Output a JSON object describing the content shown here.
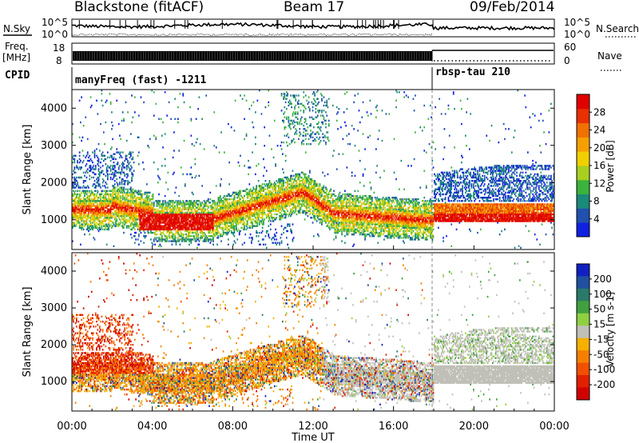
{
  "header": {
    "title": "Blackstone (fitACF)",
    "beam": "Beam 17",
    "date": "09/Feb/2014"
  },
  "noise_panel": {
    "left_label": "N.Sky",
    "right_label": "N.Search",
    "left_ticks": [
      "10^5",
      "10^0"
    ],
    "right_ticks": [
      "10^5",
      "10^0"
    ]
  },
  "freq_panel": {
    "left_label_1": "Freq.",
    "left_label_2": "[MHz]",
    "left_ticks": [
      "18",
      "8"
    ],
    "right_label": "Nave",
    "right_ticks": [
      "60",
      "0"
    ]
  },
  "cpid_panel": {
    "label": "CPID",
    "mode_1": "manyFreq (fast) -1211",
    "mode_2": "rbsp-tau 210"
  },
  "chart_data": [
    {
      "type": "heatmap",
      "title": "",
      "quantity": "Power",
      "ylabel": "Slant Range [km]",
      "xlabel": "Time UT",
      "xlim": [
        "00:00",
        "24:00"
      ],
      "ylim": [
        200,
        4500
      ],
      "yticks": [
        "1000",
        "2000",
        "3000",
        "4000"
      ],
      "colorbar_label": "Power [dB]",
      "colorbar_ticks": [
        "4",
        "8",
        "12",
        "16",
        "20",
        "24",
        "28"
      ],
      "colorbar_colors": [
        "#1020e0",
        "#2050b0",
        "#1a8a7a",
        "#3cb33c",
        "#a8d020",
        "#f0d000",
        "#f5a000",
        "#f07000",
        "#e83000",
        "#e00000"
      ]
    },
    {
      "type": "heatmap",
      "title": "",
      "quantity": "Velocity",
      "ylabel": "Slant Range [km]",
      "xlabel": "Time UT",
      "xlim": [
        "00:00",
        "24:00"
      ],
      "ylim": [
        200,
        4500
      ],
      "yticks": [
        "1000",
        "2000",
        "3000",
        "4000"
      ],
      "xticks": [
        "00:00",
        "04:00",
        "08:00",
        "12:00",
        "16:00",
        "20:00",
        "00:00"
      ],
      "colorbar_label": "Velocity [m s-1]",
      "colorbar_ticks": [
        "200",
        "100",
        "50",
        "15",
        "-15",
        "-50",
        "-100",
        "-200"
      ],
      "colorbar_colors": [
        "#1020c0",
        "#2050a0",
        "#2a7a6a",
        "#40a040",
        "#90d040",
        "#c0c0b8",
        "#f5b000",
        "#f58000",
        "#f05000",
        "#e02000",
        "#d00000"
      ]
    }
  ],
  "axis": {
    "xlabel": "Time UT",
    "xticks": [
      "00:00",
      "04:00",
      "08:00",
      "12:00",
      "16:00",
      "20:00",
      "00:00"
    ]
  }
}
